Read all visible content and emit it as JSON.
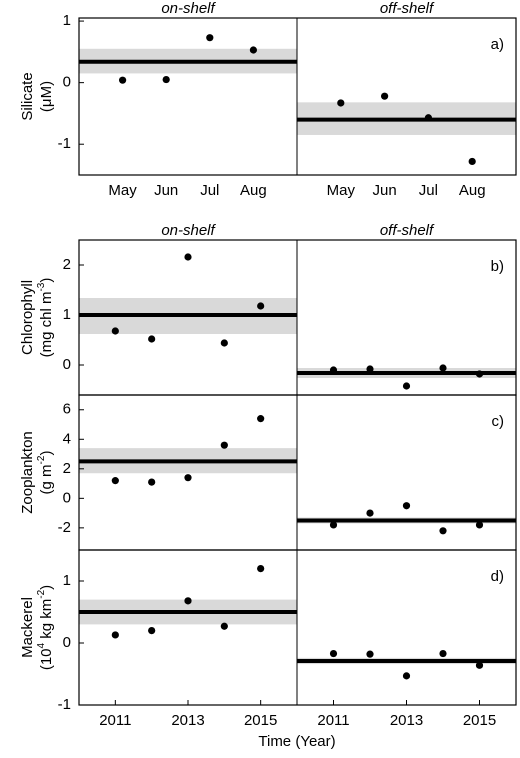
{
  "chart_data": [
    {
      "type": "scatter",
      "panel_label": "a)",
      "y_label": "Silicate",
      "y_unit": [
        {
          "text": "(μM)"
        }
      ],
      "categories": [
        "May",
        "Jun",
        "Jul",
        "Aug"
      ],
      "ylim": [
        -1.5,
        1.05
      ],
      "yticks": [
        -1,
        0,
        1
      ],
      "color": "#000000",
      "band_color": "#d9d9d9",
      "groups": [
        {
          "name": "on-shelf",
          "mean": 0.34,
          "band": [
            0.15,
            0.55
          ],
          "values": [
            0.04,
            0.05,
            0.73,
            0.53
          ]
        },
        {
          "name": "off-shelf",
          "mean": -0.6,
          "band": [
            -0.85,
            -0.32
          ],
          "values": [
            -0.33,
            -0.22,
            -0.57,
            -1.28
          ]
        }
      ]
    },
    {
      "type": "scatter",
      "panel_label": "b)",
      "y_label": "Chlorophyll",
      "y_unit": [
        {
          "text": "(mg chl m"
        },
        {
          "text": "-3",
          "sup": true
        },
        {
          "text": ")"
        }
      ],
      "x": [
        2011,
        2012,
        2013,
        2014,
        2015
      ],
      "xlim": [
        2010,
        2016
      ],
      "ylim": [
        -0.6,
        2.5
      ],
      "yticks": [
        0,
        1,
        2
      ],
      "color": "#000000",
      "band_color": "#d9d9d9",
      "groups": [
        {
          "name": "on-shelf",
          "mean": 1.0,
          "band": [
            0.62,
            1.34
          ],
          "values": [
            0.68,
            0.52,
            2.16,
            0.44,
            1.18
          ]
        },
        {
          "name": "off-shelf",
          "mean": -0.16,
          "band": [
            -0.26,
            -0.06
          ],
          "values": [
            -0.1,
            -0.08,
            -0.42,
            -0.06,
            -0.18
          ]
        }
      ]
    },
    {
      "type": "scatter",
      "panel_label": "c)",
      "y_label": "Zooplankton",
      "y_unit": [
        {
          "text": "(g m"
        },
        {
          "text": "-2",
          "sup": true
        },
        {
          "text": ")"
        }
      ],
      "x": [
        2011,
        2012,
        2013,
        2014,
        2015
      ],
      "xlim": [
        2010,
        2016
      ],
      "ylim": [
        -3.5,
        7
      ],
      "yticks": [
        -2,
        0,
        2,
        4,
        6
      ],
      "color": "#000000",
      "band_color": "#d9d9d9",
      "groups": [
        {
          "mean": 2.5,
          "band": [
            1.7,
            3.4
          ],
          "values": [
            1.2,
            1.1,
            1.4,
            3.6,
            5.4
          ]
        },
        {
          "mean": -1.5,
          "band": [
            -1.7,
            -1.3
          ],
          "values": [
            -1.8,
            -1.0,
            -0.5,
            -2.2,
            -1.8
          ]
        }
      ]
    },
    {
      "type": "scatter",
      "panel_label": "d)",
      "y_label": "Mackerel",
      "y_unit": [
        {
          "text": "(10"
        },
        {
          "text": "4",
          "sup": true
        },
        {
          "text": " kg km"
        },
        {
          "text": "-2",
          "sup": true
        },
        {
          "text": ")"
        }
      ],
      "x": [
        2011,
        2012,
        2013,
        2014,
        2015
      ],
      "xlim": [
        2010,
        2016
      ],
      "xticks": [
        2011,
        2013,
        2015
      ],
      "x_label": "Time (Year)",
      "ylim": [
        -1,
        1.5
      ],
      "yticks": [
        -1,
        0,
        1
      ],
      "color": "#000000",
      "band_color": "#d9d9d9",
      "groups": [
        {
          "mean": 0.5,
          "band": [
            0.3,
            0.7
          ],
          "values": [
            0.13,
            0.2,
            0.68,
            0.27,
            1.2
          ]
        },
        {
          "mean": -0.29,
          "band": [
            -0.34,
            -0.24
          ],
          "values": [
            -0.17,
            -0.18,
            -0.53,
            -0.17,
            -0.36
          ]
        }
      ]
    }
  ]
}
